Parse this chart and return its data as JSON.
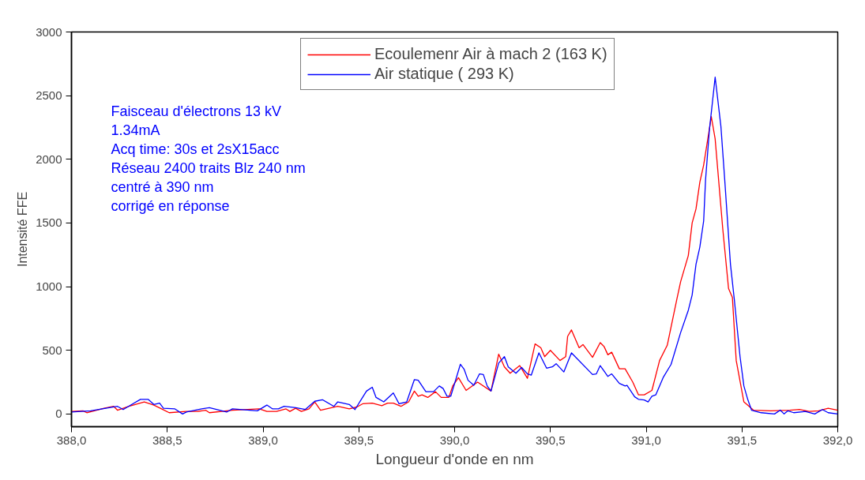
{
  "chart_data": {
    "type": "line",
    "xlabel": "Longueur d'onde en nm",
    "ylabel": "Intensité FFE",
    "annotations": [
      "Faisceau d'électrons 13 kV",
      "1.34mA",
      "Acq time: 30s et 2sX15acc",
      "Réseau 2400 traits Blz 240 nm",
      "centré à 390 nm",
      "corrigé en réponse"
    ],
    "xlim": [
      388,
      392
    ],
    "ylim": [
      -100,
      3000
    ],
    "xticks": [
      {
        "value": 388,
        "label": "388,0"
      },
      {
        "value": 388.5,
        "label": "388,5"
      },
      {
        "value": 389,
        "label": "389,0"
      },
      {
        "value": 389.5,
        "label": "389,5"
      },
      {
        "value": 390,
        "label": "390,0"
      },
      {
        "value": 390.5,
        "label": "390,5"
      },
      {
        "value": 391,
        "label": "391,0"
      },
      {
        "value": 391.5,
        "label": "391,5"
      },
      {
        "value": 392,
        "label": "392,0"
      }
    ],
    "yticks": [
      0,
      500,
      1000,
      1500,
      2000,
      2500,
      3000
    ],
    "grid": false,
    "legend": "top",
    "marker": "none",
    "line_style": "solid",
    "series": [
      {
        "name": "Ecoulemenr Air à mach 2 (163 K)",
        "color": "#ff0000",
        "x": [
          388.0,
          388.06,
          388.08,
          388.17,
          388.22,
          388.24,
          388.3,
          388.38,
          388.43,
          388.47,
          388.51,
          388.6,
          388.66,
          388.7,
          388.72,
          388.84,
          388.98,
          389.02,
          389.07,
          389.12,
          389.14,
          389.17,
          389.2,
          389.24,
          389.27,
          389.3,
          389.39,
          389.45,
          389.49,
          389.52,
          389.57,
          389.62,
          389.65,
          389.68,
          389.72,
          389.76,
          389.79,
          389.81,
          389.83,
          389.86,
          389.9,
          389.93,
          389.97,
          389.99,
          390.02,
          390.06,
          390.12,
          390.19,
          390.23,
          390.26,
          390.29,
          390.34,
          390.38,
          390.42,
          390.45,
          390.47,
          390.5,
          390.55,
          390.58,
          390.59,
          390.61,
          390.65,
          390.67,
          390.72,
          390.76,
          390.78,
          390.8,
          390.82,
          390.86,
          390.89,
          390.93,
          390.96,
          390.99,
          391.03,
          391.07,
          391.11,
          391.16,
          391.18,
          391.22,
          391.24,
          391.26,
          391.28,
          391.3,
          391.34,
          391.36,
          391.4,
          391.43,
          391.45,
          391.47,
          391.51,
          391.56,
          391.65,
          391.75,
          391.8,
          391.85,
          391.9,
          391.95,
          392.0
        ],
        "values": [
          20,
          25,
          10,
          45,
          60,
          30,
          60,
          95,
          70,
          40,
          10,
          20,
          20,
          30,
          10,
          30,
          40,
          20,
          20,
          40,
          20,
          45,
          20,
          40,
          95,
          30,
          60,
          40,
          55,
          80,
          85,
          65,
          85,
          85,
          60,
          95,
          180,
          140,
          150,
          130,
          175,
          130,
          130,
          220,
          285,
          185,
          250,
          180,
          470,
          370,
          320,
          380,
          280,
          550,
          520,
          450,
          500,
          420,
          450,
          610,
          660,
          520,
          545,
          445,
          560,
          530,
          465,
          485,
          355,
          355,
          250,
          150,
          150,
          185,
          420,
          540,
          900,
          1040,
          1245,
          1500,
          1610,
          1820,
          1955,
          2335,
          2160,
          1450,
          985,
          915,
          420,
          95,
          30,
          25,
          30,
          35,
          20,
          25,
          45,
          30
        ]
      },
      {
        "name": "Air statique ( 293 K)",
        "color": "#0000ff",
        "x": [
          388.0,
          388.1,
          388.24,
          388.27,
          388.36,
          388.4,
          388.43,
          388.46,
          388.48,
          388.54,
          388.58,
          388.6,
          388.68,
          388.72,
          388.81,
          388.84,
          388.97,
          389.02,
          389.05,
          389.08,
          389.11,
          389.17,
          389.22,
          389.27,
          389.31,
          389.37,
          389.39,
          389.45,
          389.48,
          389.54,
          389.57,
          389.59,
          389.63,
          389.68,
          389.71,
          389.75,
          389.79,
          389.81,
          389.85,
          389.89,
          389.92,
          389.94,
          389.96,
          389.98,
          390.03,
          390.05,
          390.07,
          390.1,
          390.13,
          390.15,
          390.17,
          390.19,
          390.23,
          390.26,
          390.28,
          390.32,
          390.35,
          390.38,
          390.4,
          390.44,
          390.48,
          390.51,
          390.53,
          390.57,
          390.61,
          390.72,
          390.74,
          390.76,
          390.8,
          390.82,
          390.86,
          390.89,
          390.9,
          390.94,
          390.96,
          390.99,
          391.01,
          391.03,
          391.05,
          391.09,
          391.13,
          391.18,
          391.22,
          391.24,
          391.26,
          391.28,
          391.3,
          391.31,
          391.33,
          391.36,
          391.39,
          391.41,
          391.44,
          391.46,
          391.49,
          391.51,
          391.53,
          391.55,
          391.6,
          391.67,
          391.7,
          391.72,
          391.74,
          391.77,
          391.83,
          391.88,
          391.92,
          391.95,
          392.0
        ],
        "values": [
          15,
          25,
          60,
          35,
          115,
          115,
          75,
          85,
          45,
          40,
          0,
          15,
          40,
          50,
          15,
          40,
          25,
          70,
          40,
          40,
          60,
          50,
          35,
          100,
          112,
          60,
          95,
          75,
          35,
          180,
          210,
          130,
          95,
          165,
          80,
          95,
          270,
          265,
          175,
          175,
          220,
          200,
          140,
          140,
          390,
          350,
          265,
          225,
          315,
          310,
          220,
          180,
          400,
          450,
          370,
          320,
          365,
          315,
          305,
          480,
          360,
          370,
          395,
          330,
          480,
          310,
          315,
          380,
          295,
          315,
          240,
          220,
          225,
          135,
          115,
          110,
          95,
          140,
          150,
          290,
          390,
          640,
          815,
          935,
          1175,
          1310,
          1515,
          1840,
          2230,
          2645,
          2260,
          1840,
          1175,
          900,
          450,
          220,
          115,
          30,
          10,
          0,
          30,
          0,
          25,
          10,
          20,
          0,
          35,
          10,
          0
        ]
      }
    ]
  }
}
